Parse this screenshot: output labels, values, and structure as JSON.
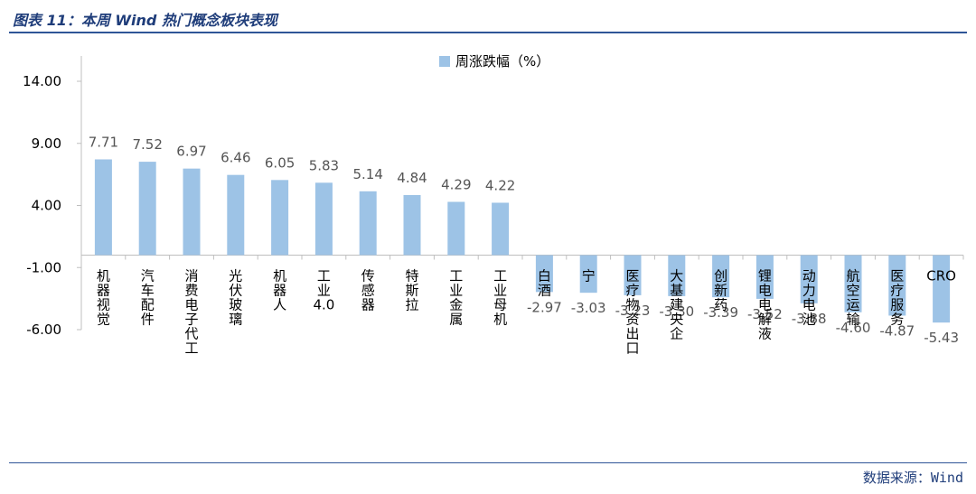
{
  "header": {
    "title": "图表 11：本周 Wind 热门概念板块表现"
  },
  "footer": {
    "source": "数据来源：Wind"
  },
  "colors": {
    "bar": "#9dc3e6",
    "rule": "#2f5597",
    "header_text": "#1f3d7a",
    "axis": "#bfbfbf"
  },
  "chart_data": {
    "type": "bar",
    "title": "",
    "xlabel": "",
    "ylabel": "",
    "ylim": [
      -6.0,
      14.0
    ],
    "yticks": [
      "14.00",
      "9.00",
      "4.00",
      "-1.00",
      "-6.00"
    ],
    "ytick_values": [
      14,
      9,
      4,
      -1,
      -6
    ],
    "grid": false,
    "legend_position": "top-center",
    "categories": [
      "机器视觉",
      "汽车配件",
      "消费电子代工",
      "光伏玻璃",
      "机器人",
      "工业4.0",
      "传感器",
      "特斯拉",
      "工业金属",
      "工业母机",
      "白酒",
      "宁",
      "医疗物资出口",
      "大基建央企",
      "创新药",
      "锂电电解液",
      "动力电池",
      "航空运输",
      "医疗服务",
      "CRO"
    ],
    "series": [
      {
        "name": "周涨跌幅（%）",
        "values": [
          7.71,
          7.52,
          6.97,
          6.46,
          6.05,
          5.83,
          5.14,
          4.84,
          4.29,
          4.22,
          -2.97,
          -3.03,
          -3.23,
          -3.3,
          -3.39,
          -3.52,
          -3.88,
          -4.6,
          -4.87,
          -5.43
        ],
        "labels": [
          "7.71",
          "7.52",
          "6.97",
          "6.46",
          "6.05",
          "5.83",
          "5.14",
          "4.84",
          "4.29",
          "4.22",
          "-2.97",
          "-3.03",
          "-3.23",
          "-3.30",
          "-3.39",
          "-3.52",
          "-3.88",
          "-4.60",
          "-4.87",
          "-5.43"
        ]
      }
    ]
  }
}
